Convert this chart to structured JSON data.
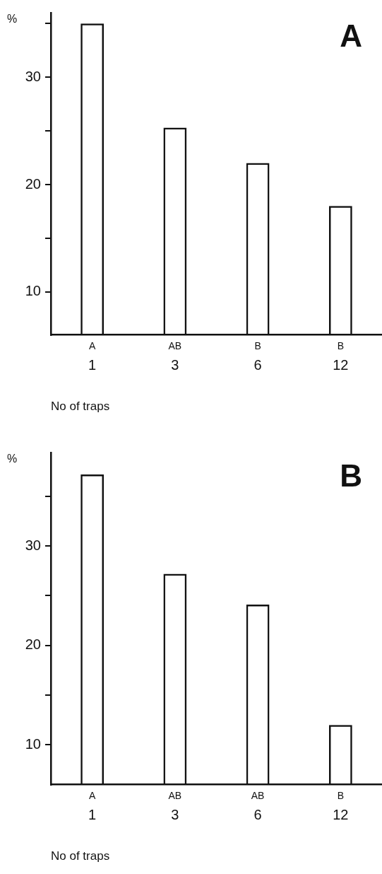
{
  "chart_data": [
    {
      "type": "bar",
      "title": "A",
      "ylabel": "%",
      "xlabel": "No of traps",
      "categories": [
        "1",
        "3",
        "6",
        "12"
      ],
      "values": [
        35,
        25.3,
        22,
        18
      ],
      "color": "#111111",
      "ylim": [
        6,
        36
      ],
      "yticks": [
        {
          "value": 35,
          "label": null
        },
        30,
        {
          "value": 25,
          "label": null
        },
        20,
        {
          "value": 15,
          "label": null
        },
        10
      ],
      "grid": false,
      "legend": false,
      "annotations": [
        "A",
        "AB",
        "B",
        "B"
      ]
    },
    {
      "type": "bar",
      "title": "B",
      "ylabel": "%",
      "xlabel": "No of traps",
      "categories": [
        "1",
        "3",
        "6",
        "12"
      ],
      "values": [
        37.2,
        27.2,
        24.1,
        12
      ],
      "color": "#111111",
      "ylim": [
        6,
        39.4
      ],
      "yticks": [
        {
          "value": 35,
          "label": null
        },
        30,
        {
          "value": 25,
          "label": null
        },
        20,
        {
          "value": 15,
          "label": null
        },
        10
      ],
      "grid": false,
      "legend": false,
      "annotations": [
        "A",
        "AB",
        "AB",
        "B"
      ]
    }
  ]
}
